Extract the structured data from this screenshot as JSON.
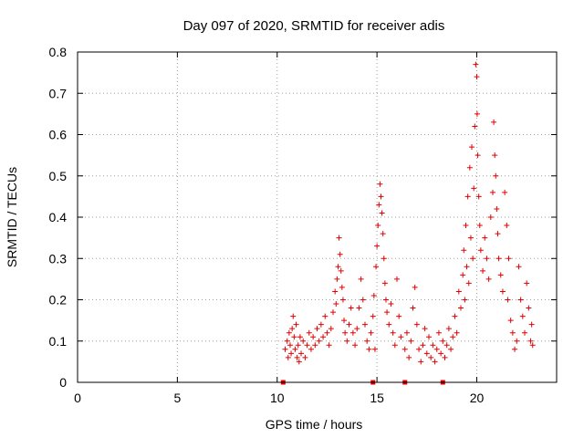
{
  "chart_data": {
    "type": "scatter",
    "title": "Day 097 of 2020, SRMTID for receiver adis",
    "xlabel": "GPS time / hours",
    "ylabel": "SRMTID / TECUs",
    "xlim": [
      0,
      24
    ],
    "ylim": [
      0,
      0.8
    ],
    "xticks": [
      "0",
      "5",
      "10",
      "15",
      "20"
    ],
    "yticks": [
      "0",
      "0.1",
      "0.2",
      "0.3",
      "0.4",
      "0.5",
      "0.6",
      "0.7",
      "0.8"
    ],
    "grid": true,
    "marker": "plus",
    "color": "#e00000",
    "series": [
      {
        "name": "SRMTID",
        "points": [
          [
            10.4,
            0.08
          ],
          [
            10.5,
            0.1
          ],
          [
            10.55,
            0.06
          ],
          [
            10.6,
            0.12
          ],
          [
            10.65,
            0.09
          ],
          [
            10.7,
            0.07
          ],
          [
            10.75,
            0.13
          ],
          [
            10.8,
            0.16
          ],
          [
            10.85,
            0.11
          ],
          [
            10.9,
            0.08
          ],
          [
            10.95,
            0.14
          ],
          [
            11.0,
            0.06
          ],
          [
            11.05,
            0.09
          ],
          [
            11.1,
            0.05
          ],
          [
            11.15,
            0.11
          ],
          [
            11.2,
            0.07
          ],
          [
            11.3,
            0.1
          ],
          [
            11.4,
            0.06
          ],
          [
            11.5,
            0.09
          ],
          [
            11.6,
            0.12
          ],
          [
            11.7,
            0.08
          ],
          [
            11.8,
            0.11
          ],
          [
            11.9,
            0.09
          ],
          [
            12.0,
            0.13
          ],
          [
            12.1,
            0.1
          ],
          [
            12.2,
            0.14
          ],
          [
            12.3,
            0.11
          ],
          [
            12.4,
            0.16
          ],
          [
            12.5,
            0.12
          ],
          [
            12.6,
            0.09
          ],
          [
            12.7,
            0.13
          ],
          [
            12.8,
            0.17
          ],
          [
            12.9,
            0.22
          ],
          [
            12.95,
            0.19
          ],
          [
            13.0,
            0.25
          ],
          [
            13.05,
            0.28
          ],
          [
            13.1,
            0.35
          ],
          [
            13.15,
            0.31
          ],
          [
            13.2,
            0.27
          ],
          [
            13.25,
            0.23
          ],
          [
            13.3,
            0.2
          ],
          [
            13.35,
            0.15
          ],
          [
            13.4,
            0.12
          ],
          [
            13.5,
            0.1
          ],
          [
            13.6,
            0.14
          ],
          [
            13.7,
            0.18
          ],
          [
            13.8,
            0.12
          ],
          [
            13.9,
            0.09
          ],
          [
            14.0,
            0.13
          ],
          [
            14.1,
            0.18
          ],
          [
            14.2,
            0.25
          ],
          [
            14.3,
            0.2
          ],
          [
            14.4,
            0.14
          ],
          [
            14.5,
            0.1
          ],
          [
            14.6,
            0.08
          ],
          [
            14.7,
            0.12
          ],
          [
            14.8,
            0.16
          ],
          [
            14.85,
            0.21
          ],
          [
            14.9,
            0.08
          ],
          [
            14.95,
            0.28
          ],
          [
            15.0,
            0.33
          ],
          [
            15.05,
            0.38
          ],
          [
            15.1,
            0.43
          ],
          [
            15.15,
            0.48
          ],
          [
            15.2,
            0.45
          ],
          [
            15.25,
            0.41
          ],
          [
            15.3,
            0.36
          ],
          [
            15.35,
            0.3
          ],
          [
            15.4,
            0.24
          ],
          [
            15.45,
            0.2
          ],
          [
            15.5,
            0.17
          ],
          [
            15.6,
            0.14
          ],
          [
            15.7,
            0.19
          ],
          [
            15.8,
            0.12
          ],
          [
            15.9,
            0.09
          ],
          [
            16.0,
            0.25
          ],
          [
            16.1,
            0.16
          ],
          [
            16.2,
            0.11
          ],
          [
            16.4,
            0.08
          ],
          [
            16.5,
            0.12
          ],
          [
            16.6,
            0.06
          ],
          [
            16.7,
            0.1
          ],
          [
            16.8,
            0.18
          ],
          [
            16.9,
            0.23
          ],
          [
            17.0,
            0.14
          ],
          [
            17.1,
            0.08
          ],
          [
            17.2,
            0.05
          ],
          [
            17.3,
            0.09
          ],
          [
            17.4,
            0.13
          ],
          [
            17.5,
            0.07
          ],
          [
            17.6,
            0.11
          ],
          [
            17.7,
            0.06
          ],
          [
            17.8,
            0.09
          ],
          [
            17.9,
            0.05
          ],
          [
            18.0,
            0.08
          ],
          [
            18.1,
            0.12
          ],
          [
            18.2,
            0.07
          ],
          [
            18.3,
            0.1
          ],
          [
            18.4,
            0.06
          ],
          [
            18.5,
            0.09
          ],
          [
            18.6,
            0.13
          ],
          [
            18.7,
            0.08
          ],
          [
            18.8,
            0.11
          ],
          [
            18.9,
            0.16
          ],
          [
            19.0,
            0.12
          ],
          [
            19.1,
            0.22
          ],
          [
            19.2,
            0.18
          ],
          [
            19.3,
            0.26
          ],
          [
            19.35,
            0.32
          ],
          [
            19.4,
            0.2
          ],
          [
            19.45,
            0.38
          ],
          [
            19.5,
            0.28
          ],
          [
            19.55,
            0.45
          ],
          [
            19.6,
            0.24
          ],
          [
            19.65,
            0.52
          ],
          [
            19.7,
            0.35
          ],
          [
            19.75,
            0.57
          ],
          [
            19.8,
            0.3
          ],
          [
            19.85,
            0.47
          ],
          [
            19.9,
            0.62
          ],
          [
            19.95,
            0.77
          ],
          [
            20.0,
            0.74
          ],
          [
            20.02,
            0.65
          ],
          [
            20.05,
            0.55
          ],
          [
            20.1,
            0.45
          ],
          [
            20.15,
            0.38
          ],
          [
            20.2,
            0.32
          ],
          [
            20.3,
            0.27
          ],
          [
            20.4,
            0.35
          ],
          [
            20.5,
            0.3
          ],
          [
            20.6,
            0.25
          ],
          [
            20.7,
            0.4
          ],
          [
            20.8,
            0.46
          ],
          [
            20.85,
            0.63
          ],
          [
            20.9,
            0.55
          ],
          [
            20.95,
            0.5
          ],
          [
            21.0,
            0.42
          ],
          [
            21.05,
            0.36
          ],
          [
            21.1,
            0.3
          ],
          [
            21.2,
            0.26
          ],
          [
            21.3,
            0.22
          ],
          [
            21.4,
            0.46
          ],
          [
            21.5,
            0.38
          ],
          [
            21.55,
            0.2
          ],
          [
            21.6,
            0.3
          ],
          [
            21.7,
            0.15
          ],
          [
            21.8,
            0.12
          ],
          [
            21.9,
            0.08
          ],
          [
            22.0,
            0.1
          ],
          [
            22.1,
            0.28
          ],
          [
            22.2,
            0.2
          ],
          [
            22.3,
            0.16
          ],
          [
            22.4,
            0.12
          ],
          [
            22.5,
            0.24
          ],
          [
            22.6,
            0.18
          ],
          [
            22.7,
            0.1
          ],
          [
            22.75,
            0.14
          ],
          [
            22.8,
            0.09
          ]
        ]
      }
    ],
    "gap_markers": [
      10.3,
      14.8,
      16.4,
      18.3
    ]
  }
}
